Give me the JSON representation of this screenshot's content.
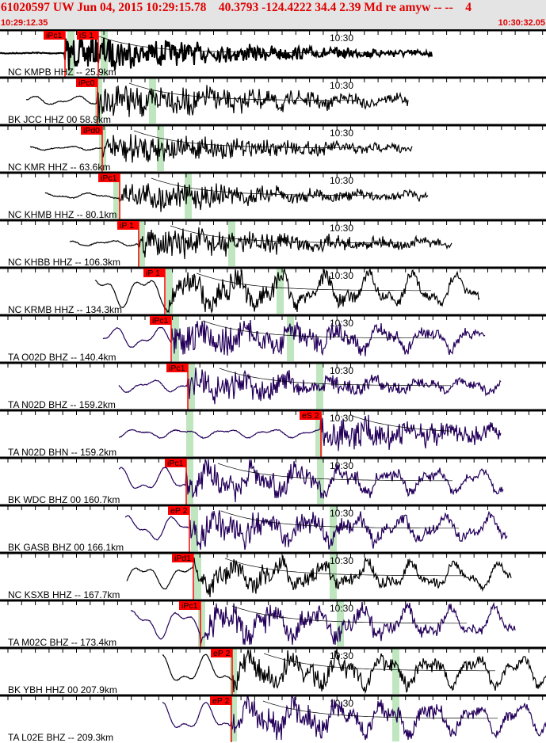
{
  "header": {
    "title": "61020597 UW Jun 04, 2015 10:29:15.78    40.3793 -124.4222 34.4 2.39 Md re amyw -- --    4",
    "start_time": "10:29:12.35",
    "end_time": "10:30:32.05",
    "minute_label": "10:30"
  },
  "colors": {
    "accent": "#e00000",
    "pick_bg": "#ff0000",
    "window": "#bfe6bf",
    "trace_black": "#000000",
    "trace_navy": "#24005a",
    "header_bg": "#e4e4e4"
  },
  "panels": [
    {
      "label": "NC KMPB HHZ -- 25.9km",
      "picks": [
        "iPc1",
        "iS 1"
      ],
      "trace": "black"
    },
    {
      "label": "BK JCC HHZ 00 58.9km",
      "picks": [
        "iPc0"
      ],
      "trace": "black"
    },
    {
      "label": "NC KMR HHZ -- 63.6km",
      "picks": [
        "iPd0"
      ],
      "trace": "black"
    },
    {
      "label": "NC KHMB HHZ -- 80.1km",
      "picks": [
        "iPc1"
      ],
      "trace": "black"
    },
    {
      "label": "NC KHBB HHZ -- 106.3km",
      "picks": [
        "iP 1"
      ],
      "trace": "black"
    },
    {
      "label": "NC KRMB HHZ -- 134.3km",
      "picks": [
        "iP 1"
      ],
      "trace": "black"
    },
    {
      "label": "TA O02D BHZ -- 140.4km",
      "picks": [
        "iPc1"
      ],
      "trace": "navy"
    },
    {
      "label": "TA N02D BHZ -- 159.2km",
      "picks": [
        "iPc1"
      ],
      "trace": "navy"
    },
    {
      "label": "TA N02D BHN -- 159.2km",
      "picks": [
        "eS 2"
      ],
      "trace": "navy"
    },
    {
      "label": "BK WDC BHZ 00 160.7km",
      "picks": [
        "iPc1"
      ],
      "trace": "navy"
    },
    {
      "label": "BK GASB BHZ 00 166.1km",
      "picks": [
        "eP 2"
      ],
      "trace": "navy"
    },
    {
      "label": "NC KSXB HHZ -- 167.7km",
      "picks": [
        "iPd1"
      ],
      "trace": "black"
    },
    {
      "label": "TA M02C BHZ -- 173.4km",
      "picks": [
        "iPc1"
      ],
      "trace": "navy"
    },
    {
      "label": "BK YBH HHZ 00 207.9km",
      "picks": [
        "eP 2"
      ],
      "trace": "black"
    },
    {
      "label": "TA L02E BHZ -- 209.3km",
      "picks": [
        "eP 2"
      ],
      "trace": "navy"
    }
  ]
}
